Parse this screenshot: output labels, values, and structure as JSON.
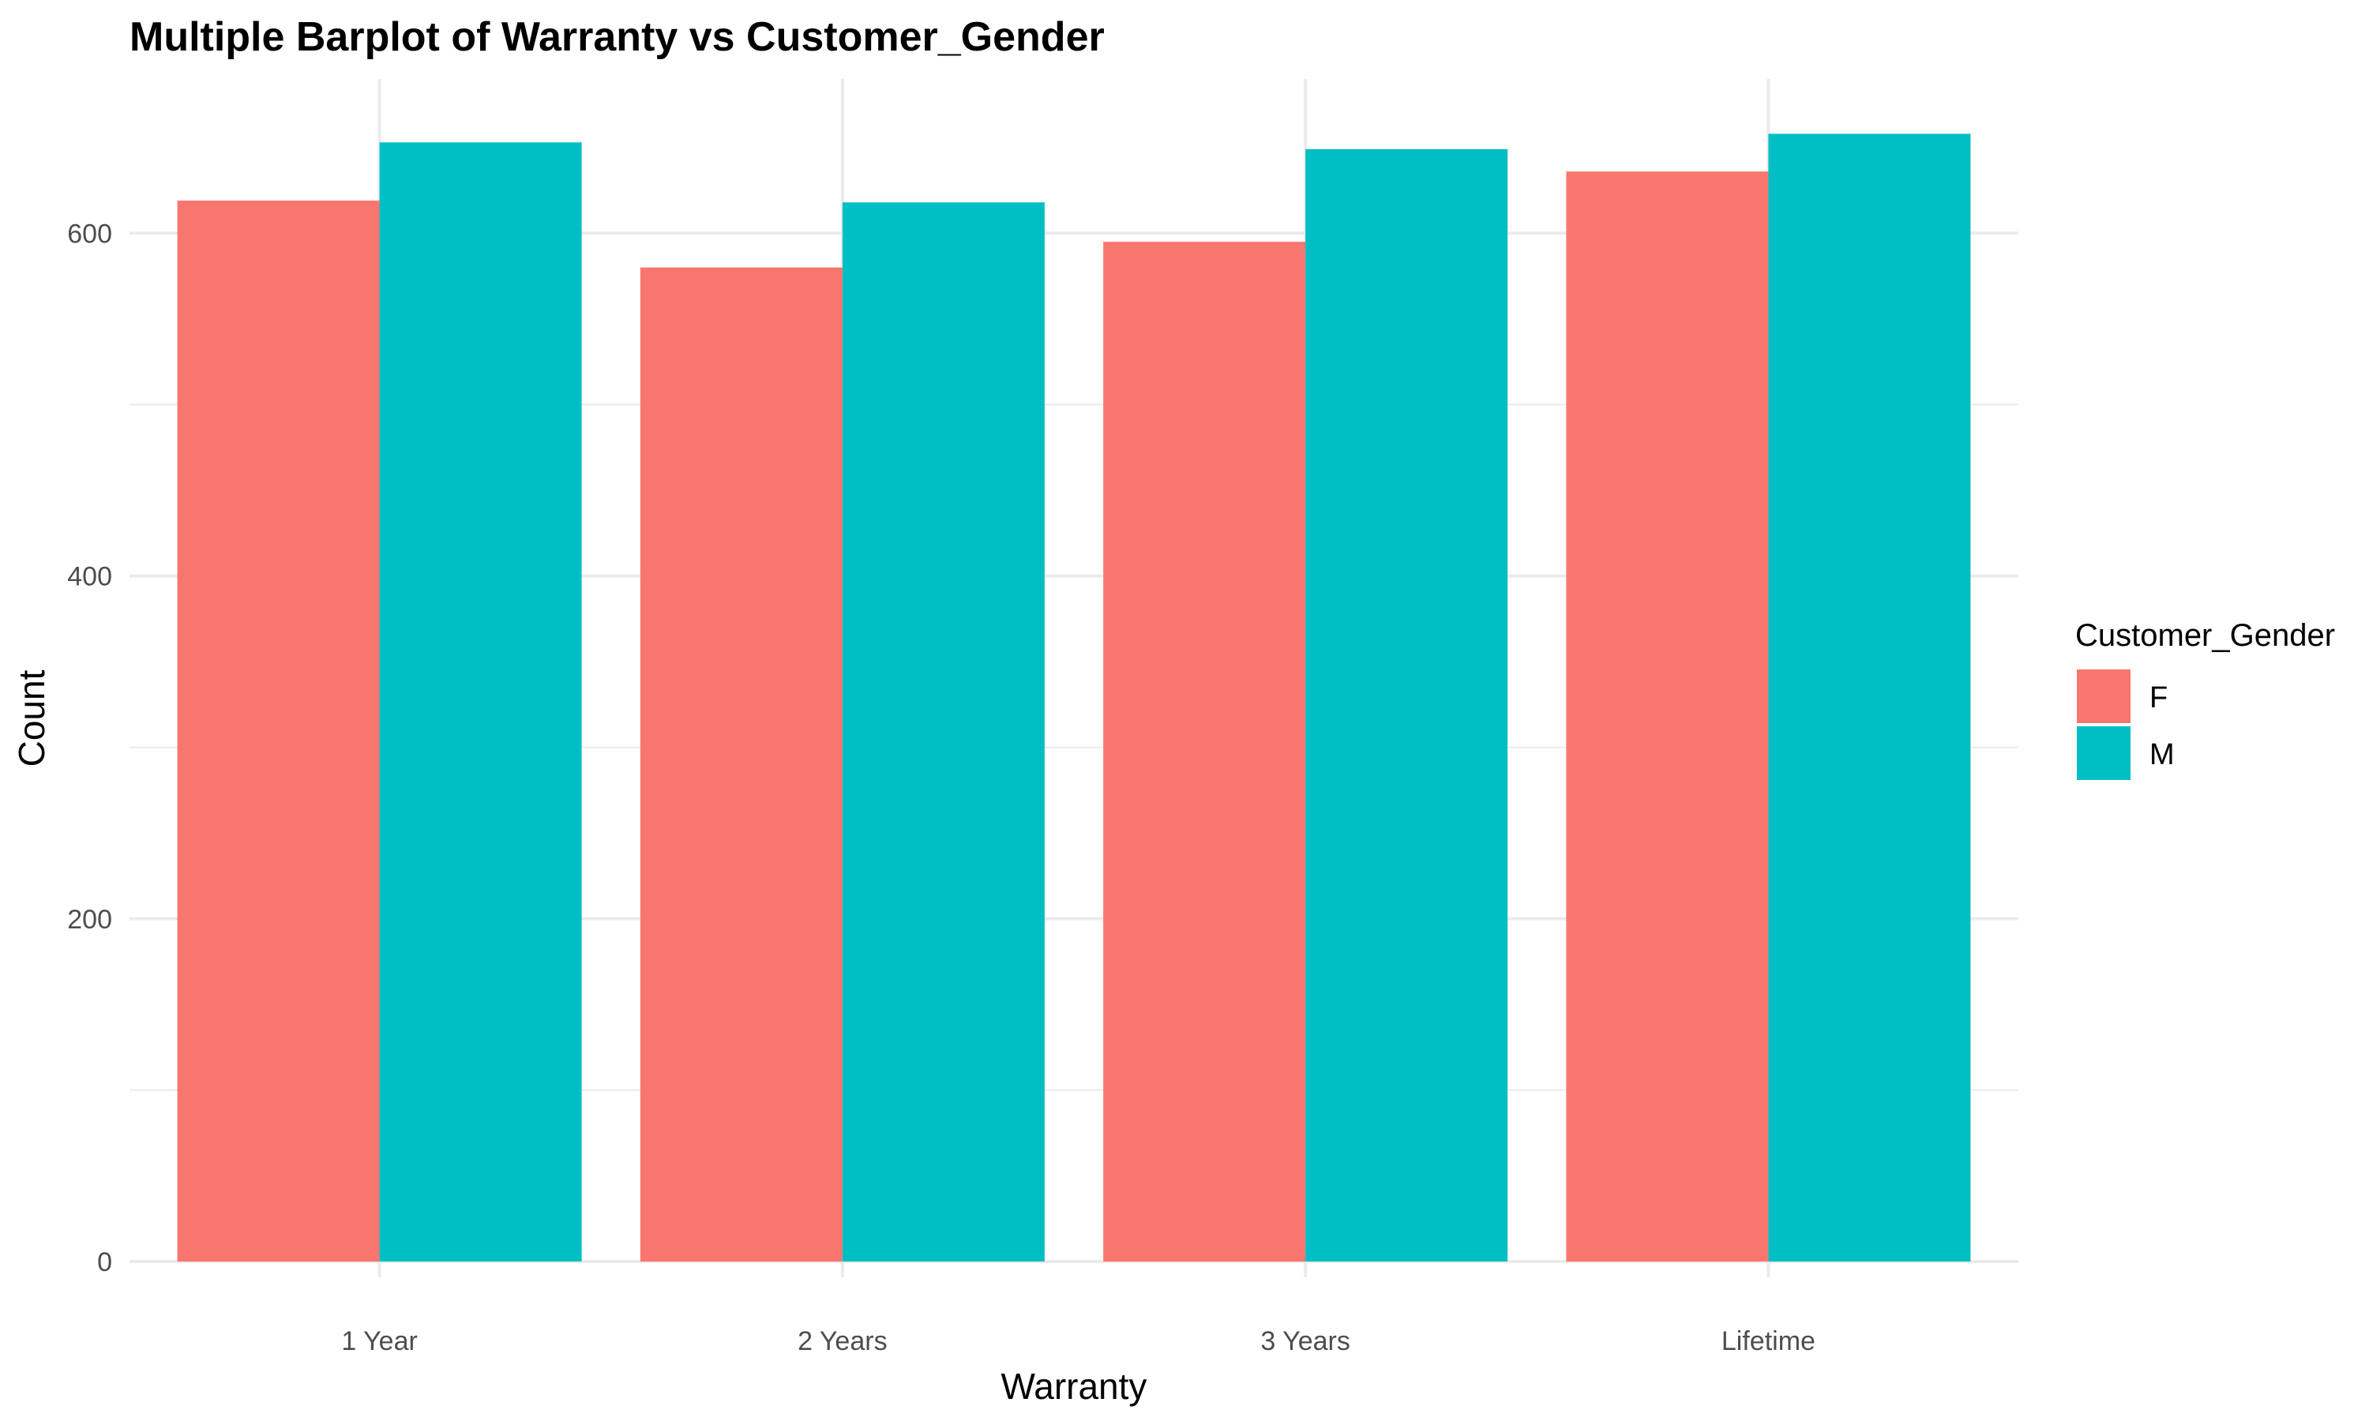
{
  "chart_data": {
    "type": "bar",
    "title": "Multiple Barplot of Warranty vs Customer_Gender",
    "xlabel": "Warranty",
    "ylabel": "Count",
    "categories": [
      "1 Year",
      "2 Years",
      "3 Years",
      "Lifetime"
    ],
    "series": [
      {
        "name": "F",
        "color": "#F8766D",
        "values": [
          619,
          580,
          595,
          636
        ]
      },
      {
        "name": "M",
        "color": "#00BFC4",
        "values": [
          653,
          618,
          649,
          658
        ]
      }
    ],
    "ylim": [
      0,
      690
    ],
    "y_ticks": [
      0,
      200,
      400,
      600
    ],
    "grid": true,
    "legend": {
      "title": "Customer_Gender",
      "placement": "right",
      "items": [
        "F",
        "M"
      ]
    }
  }
}
